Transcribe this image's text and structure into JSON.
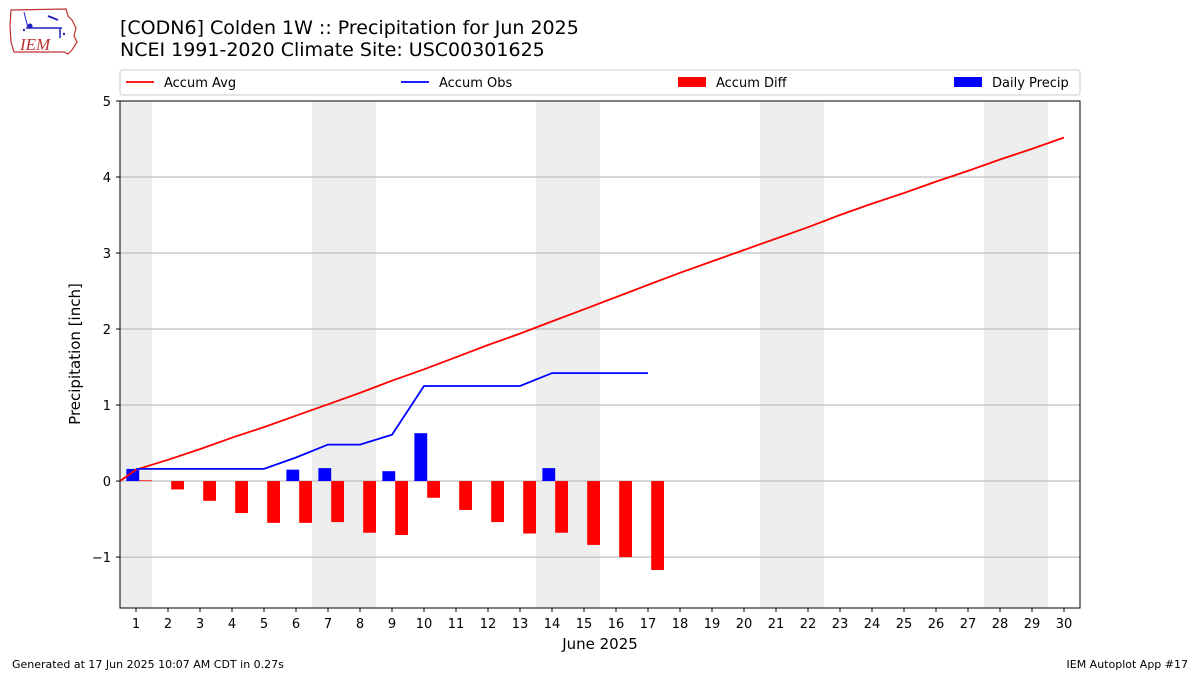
{
  "header": {
    "title_line1": "[CODN6] Colden 1W :: Precipitation for Jun 2025",
    "title_line2": "NCEI 1991-2020 Climate Site: USC00301625",
    "logo_text": "IEM"
  },
  "footer": {
    "generated": "Generated at 17 Jun 2025 10:07 AM CDT in 0.27s",
    "app": "IEM Autoplot App #17"
  },
  "colors": {
    "accum_avg": "#ff0000",
    "accum_obs": "#0000ff",
    "accum_diff": "#ff0000",
    "daily_precip": "#0000ff",
    "weekend_band": "#eeeeee",
    "grid": "#b0b0b0"
  },
  "chart_data": {
    "type": "bar",
    "xlabel": "June 2025",
    "ylabel": "Precipitation [inch]",
    "xlim": [
      0.5,
      30.5
    ],
    "ylim": [
      -1.67,
      5.0
    ],
    "yticks": [
      -1,
      0,
      1,
      2,
      3,
      4,
      5
    ],
    "ytick_labels": [
      "−1",
      "0",
      "1",
      "2",
      "3",
      "4",
      "5"
    ],
    "days": [
      1,
      2,
      3,
      4,
      5,
      6,
      7,
      8,
      9,
      10,
      11,
      12,
      13,
      14,
      15,
      16,
      17,
      18,
      19,
      20,
      21,
      22,
      23,
      24,
      25,
      26,
      27,
      28,
      29,
      30
    ],
    "weekend_days": [
      1,
      7,
      8,
      14,
      15,
      21,
      22,
      28,
      29
    ],
    "grid": "horizontal",
    "legend": {
      "placement": "top",
      "entries": [
        "Accum Avg",
        "Accum Obs",
        "Accum Diff",
        "Daily Precip"
      ]
    },
    "series": [
      {
        "name": "Accum Avg",
        "kind": "line",
        "x": [
          0.5,
          1,
          2,
          3,
          4,
          5,
          6,
          7,
          8,
          9,
          10,
          11,
          12,
          13,
          14,
          15,
          16,
          17,
          18,
          19,
          20,
          21,
          22,
          23,
          24,
          25,
          26,
          27,
          28,
          29,
          30
        ],
        "values": [
          0,
          0.15,
          0.28,
          0.42,
          0.57,
          0.71,
          0.86,
          1.01,
          1.16,
          1.32,
          1.47,
          1.63,
          1.79,
          1.94,
          2.1,
          2.26,
          2.42,
          2.58,
          2.74,
          2.89,
          3.04,
          3.19,
          3.34,
          3.5,
          3.65,
          3.79,
          3.94,
          4.08,
          4.23,
          4.37,
          4.52
        ]
      },
      {
        "name": "Accum Obs",
        "kind": "line",
        "x": [
          1,
          2,
          3,
          4,
          5,
          6,
          7,
          8,
          9,
          10,
          11,
          12,
          13,
          14,
          15,
          16,
          17
        ],
        "values": [
          0.16,
          0.16,
          0.16,
          0.16,
          0.16,
          0.31,
          0.48,
          0.48,
          0.61,
          1.25,
          1.25,
          1.25,
          1.25,
          1.42,
          1.42,
          1.42,
          1.42
        ]
      },
      {
        "name": "Accum Diff",
        "kind": "bar",
        "x": [
          1,
          2,
          3,
          4,
          5,
          6,
          7,
          8,
          9,
          10,
          11,
          12,
          13,
          14,
          15,
          16,
          17
        ],
        "values": [
          0.01,
          -0.11,
          -0.26,
          -0.42,
          -0.55,
          -0.55,
          -0.54,
          -0.68,
          -0.71,
          -0.22,
          -0.38,
          -0.54,
          -0.69,
          -0.68,
          -0.84,
          -1.0,
          -1.17
        ]
      },
      {
        "name": "Daily Precip",
        "kind": "bar",
        "x": [
          1,
          6,
          7,
          9,
          10,
          14
        ],
        "values": [
          0.16,
          0.15,
          0.17,
          0.13,
          0.63,
          0.17
        ]
      }
    ]
  }
}
